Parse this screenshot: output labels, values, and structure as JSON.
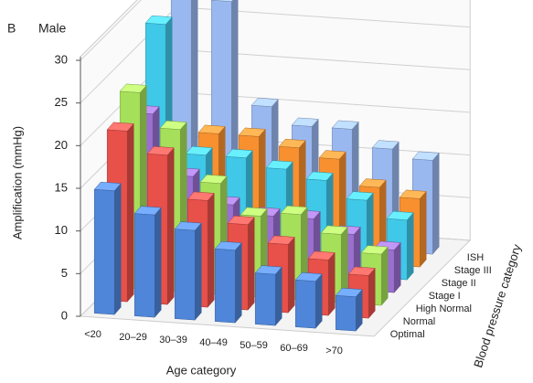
{
  "chart_data": {
    "type": "bar3d",
    "panel_label": "B",
    "title": "Male",
    "y_label": "Amplification (mmHg)",
    "x_label": "Age category",
    "z_label": "Blood pressure category",
    "categories": [
      "<20",
      "20–29",
      "30–39",
      "40–49",
      "50–59",
      "60–69",
      ">70"
    ],
    "series": [
      {
        "name": "Optimal",
        "color": "#4f86d9",
        "values": [
          14.5,
          12,
          10.5,
          8.5,
          6,
          5.5,
          4
        ]
      },
      {
        "name": "Normal",
        "color": "#e8504a",
        "values": [
          20,
          17.5,
          12.5,
          10,
          8,
          6.5,
          5
        ]
      },
      {
        "name": "High Normal",
        "color": "#a6e05a",
        "values": [
          23,
          19,
          13,
          9.5,
          10,
          8,
          6
        ]
      },
      {
        "name": "Stage I",
        "color": "#9a6fd0",
        "values": [
          19,
          12,
          9,
          8,
          8,
          6.5,
          5
        ]
      },
      {
        "name": "Stage II",
        "color": "#40c8e8",
        "values": [
          28,
          13,
          13,
          12,
          11,
          9,
          7
        ]
      },
      {
        "name": "Stage III",
        "color": "#f8902f",
        "values": [
          12,
          14,
          14,
          13,
          12,
          9,
          8
        ]
      },
      {
        "name": "ISH",
        "color": "#9ab8f0",
        "values": [
          31,
          28,
          16,
          14,
          14,
          12,
          11
        ]
      }
    ],
    "ylim": [
      0,
      30
    ],
    "yticks": [
      0,
      5,
      10,
      15,
      20,
      25,
      30
    ],
    "grid": true
  }
}
